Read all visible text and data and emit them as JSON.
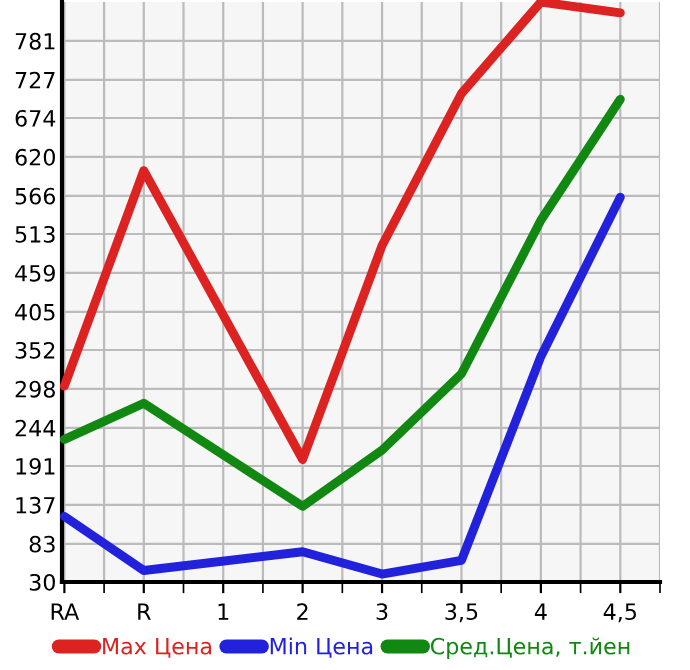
{
  "chart_data": {
    "type": "line",
    "categories": [
      "RA",
      "R",
      "1",
      "2",
      "3",
      "3,5",
      "4",
      "4,5"
    ],
    "series": [
      {
        "name": "Max Цена",
        "color": "#dd2222",
        "values": [
          302,
          601,
          null,
          200,
          497,
          708,
          835,
          820
        ]
      },
      {
        "name": "Min Цена",
        "color": "#2222dd",
        "values": [
          121,
          46,
          null,
          72,
          41,
          60,
          343,
          564
        ]
      },
      {
        "name": "Сред.Цена, т.йен",
        "color": "#118811",
        "values": [
          228,
          278,
          null,
          135,
          213,
          319,
          532,
          700
        ]
      }
    ],
    "ylim": [
      30,
      835
    ],
    "yticks": [
      30,
      83,
      137,
      191,
      244,
      298,
      352,
      405,
      459,
      513,
      566,
      620,
      674,
      727,
      781
    ],
    "grid": true,
    "legend": "bottom",
    "marker": "none",
    "line_style": "solid"
  }
}
